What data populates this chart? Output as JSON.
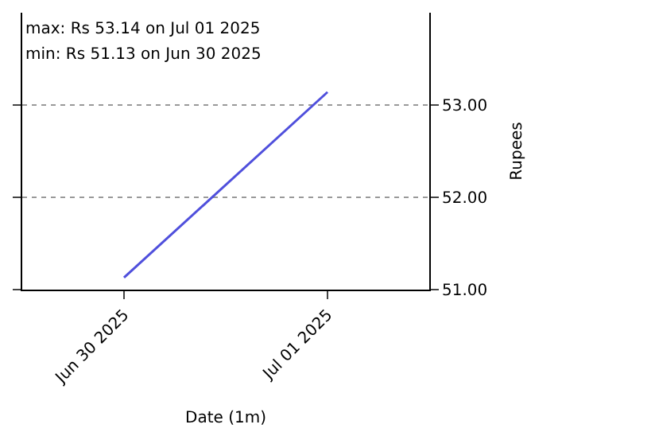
{
  "chart_data": {
    "type": "line",
    "xlabel": "Date (1m)",
    "ylabel": "Rupees",
    "annotations": [
      "max: Rs 53.14 on Jul 01 2025",
      "min: Rs 51.13 on Jun 30 2025"
    ],
    "x": [
      "2025-06-30",
      "2025-07-01"
    ],
    "series": [
      {
        "color": "#4f4fdc",
        "values": [
          51.13,
          53.14
        ]
      }
    ],
    "xlim": [
      "2025-06-29T12:00",
      "2025-07-01T12:00"
    ],
    "xticks": [
      {
        "value": "2025-06-30",
        "label": "Jun 30 2025"
      },
      {
        "value": "2025-07-01",
        "label": "Jul 01 2025"
      }
    ],
    "ylim": [
      51,
      54
    ],
    "yticks": [
      {
        "value": 51,
        "label": "51.00"
      },
      {
        "value": 52,
        "label": "52.00"
      },
      {
        "value": 53,
        "label": "53.00"
      }
    ],
    "grid": "y",
    "marker": "none",
    "line_style": "solid"
  }
}
